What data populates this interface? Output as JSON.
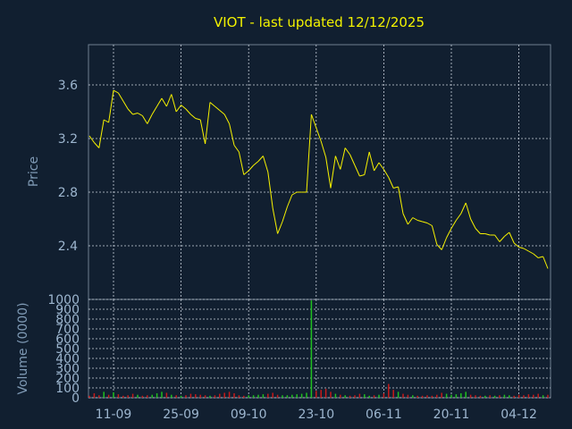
{
  "chart_data": [
    {
      "type": "line",
      "title": "VIOT - last updated 12/12/2025",
      "ylabel": "Price",
      "ylim": [
        2.0,
        3.9
      ],
      "yticks": [
        2.4,
        2.8,
        3.2,
        3.6
      ],
      "grid": true,
      "colors": {
        "line": "#f7f200",
        "grid": "#c9d1dc",
        "background": "#111f30",
        "panel": "#111f30"
      },
      "series": [
        {
          "values": [
            3.22,
            3.17,
            3.13,
            3.34,
            3.32,
            3.56,
            3.54,
            3.48,
            3.42,
            3.38,
            3.39,
            3.37,
            3.31,
            3.38,
            3.44,
            3.5,
            3.44,
            3.53,
            3.4,
            3.45,
            3.42,
            3.38,
            3.35,
            3.34,
            3.16,
            3.47,
            3.44,
            3.41,
            3.38,
            3.31,
            3.15,
            3.1,
            2.93,
            2.96,
            3.0,
            3.03,
            3.07,
            2.95,
            2.68,
            2.49,
            2.58,
            2.69,
            2.78,
            2.8,
            2.8,
            2.8,
            3.38,
            3.28,
            3.18,
            3.06,
            2.83,
            3.07,
            2.97,
            3.13,
            3.08,
            3.0,
            2.92,
            2.93,
            3.1,
            2.96,
            3.02,
            2.97,
            2.91,
            2.83,
            2.84,
            2.64,
            2.56,
            2.61,
            2.59,
            2.58,
            2.57,
            2.55,
            2.41,
            2.37,
            2.46,
            2.53,
            2.59,
            2.64,
            2.72,
            2.6,
            2.53,
            2.49,
            2.49,
            2.48,
            2.48,
            2.43,
            2.47,
            2.5,
            2.42,
            2.39,
            2.38,
            2.36,
            2.34,
            2.31,
            2.32,
            2.23
          ]
        }
      ]
    },
    {
      "type": "bar",
      "ylabel": "Volume (0000)",
      "ylim": [
        0,
        1000
      ],
      "yticks": [
        0,
        100,
        200,
        300,
        400,
        500,
        600,
        700,
        800,
        900,
        1000
      ],
      "xticks": [
        {
          "label": "11-09",
          "index": 5
        },
        {
          "label": "25-09",
          "index": 19
        },
        {
          "label": "09-10",
          "index": 33
        },
        {
          "label": "23-10",
          "index": 47
        },
        {
          "label": "06-11",
          "index": 61
        },
        {
          "label": "20-11",
          "index": 75
        },
        {
          "label": "04-12",
          "index": 89
        }
      ],
      "grid": true,
      "colors": {
        "up": "#1fbf1f",
        "down": "#c71a1a"
      },
      "values": [
        20,
        45,
        25,
        60,
        30,
        55,
        35,
        20,
        25,
        40,
        30,
        20,
        25,
        30,
        45,
        60,
        50,
        30,
        25,
        20,
        25,
        40,
        35,
        30,
        25,
        20,
        25,
        40,
        50,
        60,
        45,
        25,
        20,
        25,
        25,
        30,
        35,
        40,
        50,
        30,
        25,
        25,
        30,
        35,
        40,
        50,
        990,
        70,
        80,
        90,
        60,
        40,
        30,
        25,
        20,
        25,
        40,
        35,
        20,
        25,
        30,
        45,
        140,
        80,
        60,
        40,
        30,
        25,
        20,
        20,
        25,
        20,
        30,
        50,
        40,
        30,
        35,
        45,
        60,
        30,
        25,
        20,
        20,
        25,
        20,
        25,
        30,
        25,
        20,
        30,
        25,
        35,
        30,
        40,
        25,
        30
      ],
      "directions": [
        "down",
        "down",
        "down",
        "up",
        "down",
        "up",
        "down",
        "down",
        "down",
        "down",
        "up",
        "down",
        "down",
        "up",
        "up",
        "up",
        "down",
        "up",
        "down",
        "up",
        "down",
        "down",
        "down",
        "down",
        "down",
        "up",
        "down",
        "down",
        "down",
        "down",
        "down",
        "down",
        "down",
        "up",
        "up",
        "up",
        "up",
        "down",
        "down",
        "down",
        "up",
        "up",
        "up",
        "up",
        "up",
        "up",
        "up",
        "down",
        "down",
        "down",
        "down",
        "up",
        "down",
        "up",
        "down",
        "down",
        "down",
        "up",
        "up",
        "down",
        "up",
        "down",
        "down",
        "down",
        "up",
        "down",
        "down",
        "up",
        "down",
        "down",
        "down",
        "down",
        "down",
        "down",
        "up",
        "up",
        "up",
        "up",
        "up",
        "down",
        "down",
        "down",
        "up",
        "down",
        "up",
        "down",
        "up",
        "up",
        "down",
        "down",
        "down",
        "down",
        "down",
        "down",
        "up",
        "down"
      ]
    }
  ]
}
